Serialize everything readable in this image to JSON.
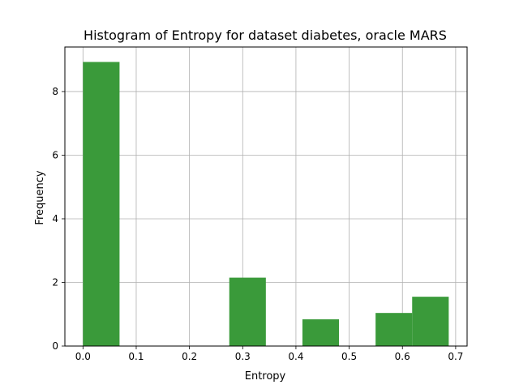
{
  "chart_data": {
    "type": "bar",
    "subtype": "histogram",
    "title": "Histogram of Entropy for dataset diabetes, oracle MARS",
    "xlabel": "Entropy",
    "ylabel": "Frequency",
    "xlim": [
      -0.034,
      0.7215
    ],
    "ylim": [
      0,
      9.4
    ],
    "x_ticks": [
      0.0,
      0.1,
      0.2,
      0.3,
      0.4,
      0.5,
      0.6,
      0.7
    ],
    "x_tick_labels": [
      "0.0",
      "0.1",
      "0.2",
      "0.3",
      "0.4",
      "0.5",
      "0.6",
      "0.7"
    ],
    "y_ticks": [
      0,
      2,
      4,
      6,
      8
    ],
    "y_tick_labels": [
      "0",
      "2",
      "4",
      "6",
      "8"
    ],
    "grid": true,
    "bar_color": "#3a9a3a",
    "bins": [
      {
        "x0": 0.0,
        "x1": 0.0687,
        "value": 8.93
      },
      {
        "x0": 0.0687,
        "x1": 0.1374,
        "value": 0
      },
      {
        "x0": 0.1374,
        "x1": 0.2061,
        "value": 0
      },
      {
        "x0": 0.2061,
        "x1": 0.2748,
        "value": 0
      },
      {
        "x0": 0.2748,
        "x1": 0.3435,
        "value": 2.15
      },
      {
        "x0": 0.3435,
        "x1": 0.4122,
        "value": 0
      },
      {
        "x0": 0.4122,
        "x1": 0.4809,
        "value": 0.84
      },
      {
        "x0": 0.4809,
        "x1": 0.5496,
        "value": 0
      },
      {
        "x0": 0.5496,
        "x1": 0.6183,
        "value": 1.04
      },
      {
        "x0": 0.6183,
        "x1": 0.687,
        "value": 1.55
      }
    ]
  }
}
